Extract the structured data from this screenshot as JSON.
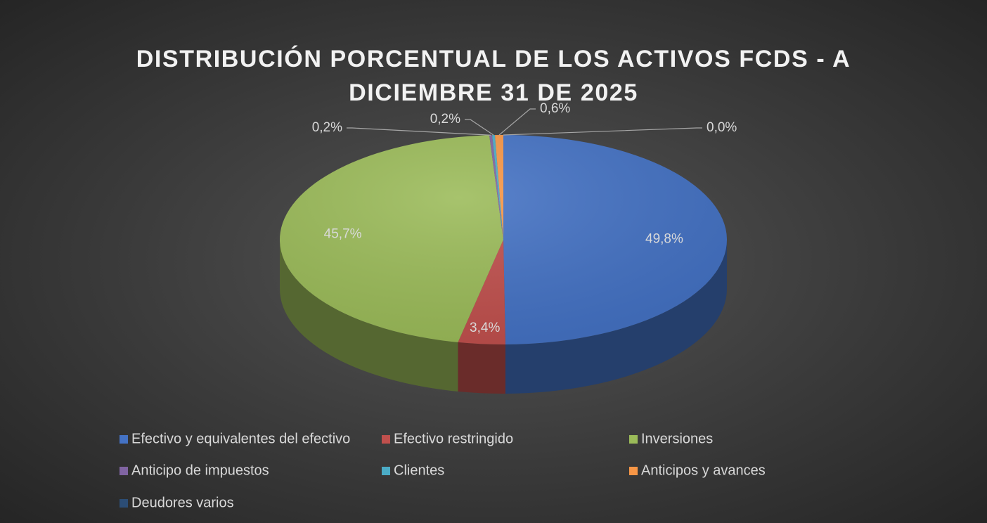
{
  "chart_data": {
    "type": "pie3d",
    "title": "DISTRIBUCIÓN PORCENTUAL DE LOS ACTIVOS FCDS - A\nDICIEMBRE 31 DE 2025",
    "categories": [
      "Efectivo y equivalentes del efectivo",
      "Efectivo restringido",
      "Inversiones",
      "Anticipo de impuestos",
      "Clientes",
      "Anticipos y avances",
      "Deudores varios"
    ],
    "values": [
      49.8,
      3.4,
      45.7,
      0.2,
      0.2,
      0.6,
      0.0
    ],
    "value_labels": [
      "49,8%",
      "3,4%",
      "45,7%",
      "0,2%",
      "0,2%",
      "0,6%",
      "0,0%"
    ],
    "colors": [
      "#4472c4",
      "#c0504d",
      "#9bbb59",
      "#8064a2",
      "#4bacc6",
      "#f79646",
      "#2c4d75"
    ],
    "legend": "bottom"
  }
}
